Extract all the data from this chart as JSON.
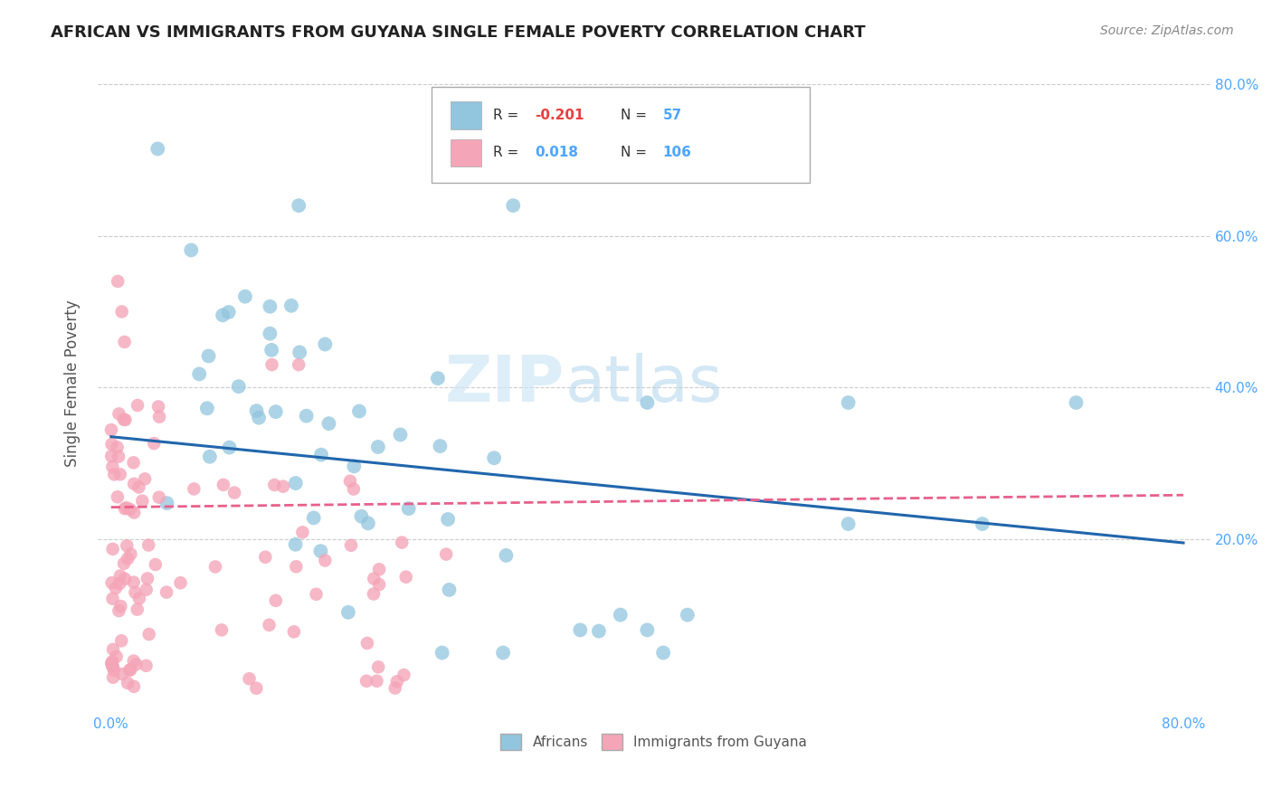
{
  "title": "AFRICAN VS IMMIGRANTS FROM GUYANA SINGLE FEMALE POVERTY CORRELATION CHART",
  "source": "Source: ZipAtlas.com",
  "ylabel": "Single Female Poverty",
  "legend_label1": "Africans",
  "legend_label2": "Immigrants from Guyana",
  "r1": "-0.201",
  "n1": "57",
  "r2": "0.018",
  "n2": "106",
  "watermark_zip": "ZIP",
  "watermark_atlas": "atlas",
  "blue_color": "#92c5de",
  "pink_color": "#f4a5b8",
  "blue_line_color": "#2166ac",
  "pink_line_color": "#e8608a",
  "axis_label_color": "#4da6ff",
  "red_color": "#e84040",
  "text_color": "#555555",
  "legend_text_color": "#333333"
}
